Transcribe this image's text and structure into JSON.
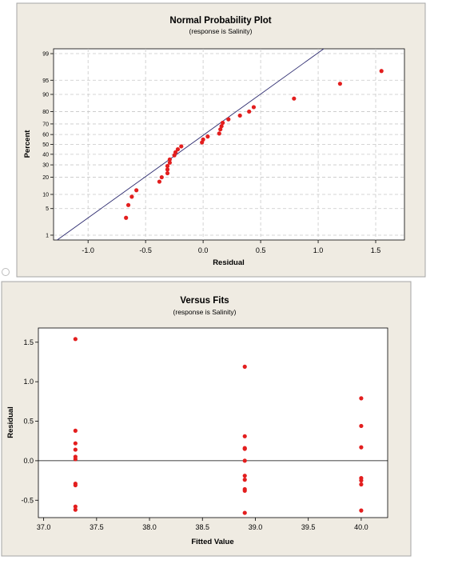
{
  "chart_data": [
    {
      "type": "scatter",
      "title": "Normal Probability Plot",
      "subtitle": "(response is Salinity)",
      "xlabel": "Residual",
      "ylabel": "Percent",
      "xlim": [
        -1.3,
        1.75
      ],
      "x_ticks": [
        -1.0,
        -0.5,
        0.0,
        0.5,
        1.0,
        1.5
      ],
      "x_tick_labels": [
        "-1.0",
        "-0.5",
        "0.0",
        "0.5",
        "1.0",
        "1.5"
      ],
      "y_scale": "normal-probability",
      "y_ticks": [
        1,
        5,
        10,
        20,
        30,
        40,
        50,
        60,
        70,
        80,
        90,
        95,
        99
      ],
      "y_tick_labels": [
        "1",
        "5",
        "10",
        "20",
        "30",
        "40",
        "50",
        "60",
        "70",
        "80",
        "90",
        "95",
        "99"
      ],
      "grid": true,
      "fit_line": {
        "x": [
          -1.21,
          0.99
        ],
        "y": [
          1,
          99
        ]
      },
      "points": [
        {
          "x": -0.67,
          "y": 3
        },
        {
          "x": -0.65,
          "y": 6
        },
        {
          "x": -0.62,
          "y": 9
        },
        {
          "x": -0.58,
          "y": 12
        },
        {
          "x": -0.38,
          "y": 17
        },
        {
          "x": -0.36,
          "y": 20
        },
        {
          "x": -0.31,
          "y": 23
        },
        {
          "x": -0.31,
          "y": 26
        },
        {
          "x": -0.31,
          "y": 29
        },
        {
          "x": -0.29,
          "y": 32
        },
        {
          "x": -0.29,
          "y": 35
        },
        {
          "x": -0.25,
          "y": 39
        },
        {
          "x": -0.24,
          "y": 42
        },
        {
          "x": -0.22,
          "y": 45
        },
        {
          "x": -0.19,
          "y": 48
        },
        {
          "x": -0.01,
          "y": 52
        },
        {
          "x": 0.0,
          "y": 55
        },
        {
          "x": 0.04,
          "y": 58
        },
        {
          "x": 0.14,
          "y": 61
        },
        {
          "x": 0.15,
          "y": 65
        },
        {
          "x": 0.16,
          "y": 68
        },
        {
          "x": 0.17,
          "y": 71
        },
        {
          "x": 0.22,
          "y": 74
        },
        {
          "x": 0.32,
          "y": 77
        },
        {
          "x": 0.4,
          "y": 80
        },
        {
          "x": 0.44,
          "y": 83
        },
        {
          "x": 0.79,
          "y": 88
        },
        {
          "x": 1.19,
          "y": 94
        },
        {
          "x": 1.55,
          "y": 97
        }
      ]
    },
    {
      "type": "scatter",
      "title": "Versus Fits",
      "subtitle": "(response is Salinity)",
      "xlabel": "Fitted Value",
      "ylabel": "Residual",
      "xlim": [
        36.95,
        40.25
      ],
      "ylim": [
        -0.72,
        1.68
      ],
      "x_ticks": [
        37.0,
        37.5,
        38.0,
        38.5,
        39.0,
        39.5,
        40.0
      ],
      "x_tick_labels": [
        "37.0",
        "37.5",
        "38.0",
        "38.5",
        "39.0",
        "39.5",
        "40.0"
      ],
      "y_ticks": [
        -0.5,
        0.0,
        0.5,
        1.0,
        1.5
      ],
      "y_tick_labels": [
        "-0.5",
        "0.0",
        "0.5",
        "1.0",
        "1.5"
      ],
      "grid": false,
      "reference_line_y": 0,
      "points": [
        {
          "x": 37.3,
          "y": 1.54
        },
        {
          "x": 37.3,
          "y": 0.38
        },
        {
          "x": 37.3,
          "y": 0.22
        },
        {
          "x": 37.3,
          "y": 0.14
        },
        {
          "x": 37.3,
          "y": 0.05
        },
        {
          "x": 37.3,
          "y": 0.02
        },
        {
          "x": 37.3,
          "y": -0.29
        },
        {
          "x": 37.3,
          "y": -0.31
        },
        {
          "x": 37.3,
          "y": -0.58
        },
        {
          "x": 37.3,
          "y": -0.62
        },
        {
          "x": 38.9,
          "y": 1.19
        },
        {
          "x": 38.9,
          "y": 0.31
        },
        {
          "x": 38.9,
          "y": 0.16
        },
        {
          "x": 38.9,
          "y": 0.15
        },
        {
          "x": 38.9,
          "y": 0.0
        },
        {
          "x": 38.9,
          "y": -0.19
        },
        {
          "x": 38.9,
          "y": -0.24
        },
        {
          "x": 38.9,
          "y": -0.36
        },
        {
          "x": 38.9,
          "y": -0.38
        },
        {
          "x": 38.9,
          "y": -0.66
        },
        {
          "x": 40.0,
          "y": 0.79
        },
        {
          "x": 40.0,
          "y": 0.44
        },
        {
          "x": 40.0,
          "y": 0.17
        },
        {
          "x": 40.0,
          "y": -0.22
        },
        {
          "x": 40.0,
          "y": -0.25
        },
        {
          "x": 40.0,
          "y": -0.3
        },
        {
          "x": 40.0,
          "y": -0.63
        }
      ]
    }
  ]
}
